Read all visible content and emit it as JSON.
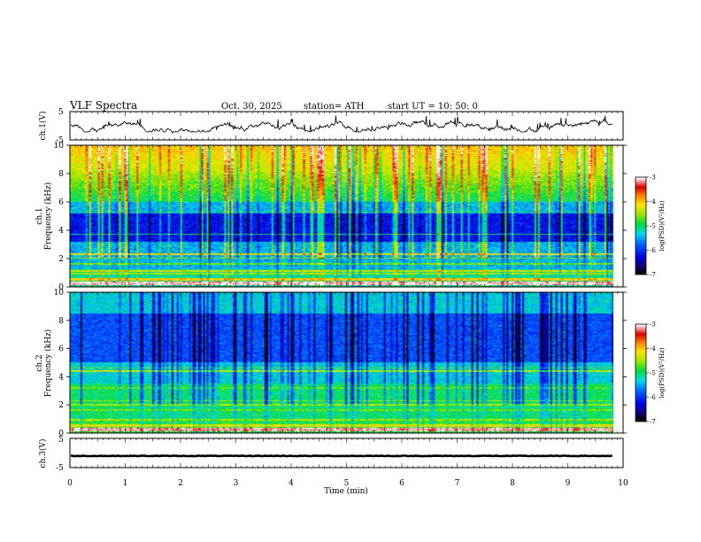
{
  "header": {
    "title": "VLF  Spectra",
    "date": "Oct. 30, 2025",
    "station": "station= ATH",
    "start": "start  UT  =    10: 50: 0"
  },
  "chart_data": {
    "type": "heatmap",
    "panels": [
      {
        "id": "ch1-voltage",
        "type": "line",
        "ylabel": "ch.1(V)",
        "ylim": [
          -5,
          5
        ],
        "ytick_labels": [
          "5",
          "-5"
        ],
        "yticks": [
          5,
          -5
        ],
        "description_trace": "noisy waveform fluctuating between about -2 and +2.5 V"
      },
      {
        "id": "ch1-spectrogram",
        "type": "heatmap",
        "ylabel": "ch.1\nFrequency  (kHz)",
        "ylim": [
          0,
          10
        ],
        "yticks": [
          0,
          2,
          4,
          6,
          8,
          10
        ],
        "ytick_labels": [
          "0",
          "2",
          "4",
          "6",
          "8",
          "10"
        ],
        "colorbar": {
          "label": "log(PSD)(V²/Hz)",
          "range": [
            -7,
            -3
          ],
          "ticks": [
            "-3",
            "-4",
            "-5",
            "-6",
            "-7"
          ]
        }
      },
      {
        "id": "ch2-spectrogram",
        "type": "heatmap",
        "ylabel": "ch.2\nFrequency  (kHz)",
        "ylim": [
          0,
          10
        ],
        "yticks": [
          0,
          2,
          4,
          6,
          8,
          10
        ],
        "ytick_labels": [
          "0",
          "2",
          "4",
          "6",
          "8",
          "10"
        ],
        "colorbar": {
          "label": "log(PSD)(V²/Hz)",
          "range": [
            -7,
            -3
          ],
          "ticks": [
            "-3",
            "-4",
            "-5",
            "-6",
            "-7"
          ]
        }
      },
      {
        "id": "ch3-voltage",
        "type": "line",
        "ylabel": "ch.3(V)",
        "ylim": [
          -5,
          5
        ],
        "ytick_labels": [
          "5",
          "-5"
        ],
        "yticks": [
          5,
          -5
        ],
        "description_trace": "flat trace near -1 V"
      }
    ],
    "xaxis": {
      "label": "Time  (min)",
      "xlim": [
        0,
        10
      ],
      "data_end": 9.82,
      "ticks": [
        0,
        1,
        2,
        3,
        4,
        5,
        6,
        7,
        8,
        9,
        10
      ],
      "tick_labels": [
        "0",
        "1",
        "2",
        "3",
        "4",
        "5",
        "6",
        "7",
        "8",
        "9",
        "10"
      ]
    }
  }
}
